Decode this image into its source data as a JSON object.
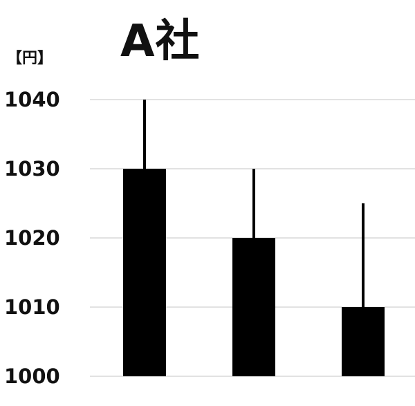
{
  "title": "A社",
  "unit_label": "【円】",
  "chart_data": {
    "type": "bar",
    "title": "A社",
    "ylabel": "【円】",
    "xlabel": "",
    "ylim": [
      1000,
      1040
    ],
    "yticks": [
      1000,
      1010,
      1020,
      1030,
      1040
    ],
    "grid": true,
    "categories": [
      "",
      "",
      ""
    ],
    "values": [
      1030,
      1020,
      1010
    ],
    "upper_whisker": [
      1040,
      1030,
      1025
    ],
    "colors": {
      "bar": "#000000",
      "grid": "#d9d9d9",
      "text": "#111111"
    }
  }
}
